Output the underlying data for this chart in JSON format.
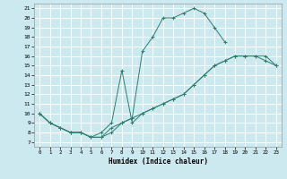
{
  "title": "",
  "xlabel": "Humidex (Indice chaleur)",
  "bg_color": "#cce9f0",
  "grid_color": "#ffffff",
  "line_color": "#2e7d6e",
  "xlim": [
    -0.5,
    23.5
  ],
  "ylim": [
    6.5,
    21.5
  ],
  "xticks": [
    0,
    1,
    2,
    3,
    4,
    5,
    6,
    7,
    8,
    9,
    10,
    11,
    12,
    13,
    14,
    15,
    16,
    17,
    18,
    19,
    20,
    21,
    22,
    23
  ],
  "yticks": [
    7,
    8,
    9,
    10,
    11,
    12,
    13,
    14,
    15,
    16,
    17,
    18,
    19,
    20,
    21
  ],
  "line1_x": [
    0,
    1,
    2,
    3,
    4,
    5,
    6,
    7,
    8,
    9,
    10,
    11,
    12,
    13,
    14,
    15,
    16,
    17,
    18
  ],
  "line1_y": [
    10,
    9,
    8.5,
    8,
    8,
    7.5,
    7.5,
    8.5,
    9,
    9.5,
    16.5,
    18,
    20,
    20,
    20.5,
    21,
    20.5,
    19.0,
    17.5
  ],
  "line2_x": [
    0,
    1,
    2,
    3,
    4,
    5,
    6,
    7,
    8,
    9,
    10,
    11,
    12,
    13,
    14,
    15,
    16,
    17,
    18,
    19,
    20,
    21,
    22,
    23
  ],
  "line2_y": [
    10,
    9,
    8.5,
    8,
    8,
    7.5,
    8,
    9,
    14.5,
    9,
    10,
    10.5,
    11,
    11.5,
    12,
    13,
    14,
    15,
    15.5,
    16,
    16,
    16,
    16,
    15
  ],
  "line3_x": [
    0,
    1,
    2,
    3,
    4,
    5,
    6,
    7,
    8,
    9,
    10,
    11,
    12,
    13,
    14,
    15,
    16,
    17,
    18,
    19,
    20,
    21,
    22,
    23
  ],
  "line3_y": [
    10,
    9,
    8.5,
    8,
    8,
    7.5,
    7.5,
    8,
    9,
    9.5,
    10,
    10.5,
    11,
    11.5,
    12,
    13,
    14,
    15,
    15.5,
    16,
    16,
    16,
    15.5,
    15
  ]
}
